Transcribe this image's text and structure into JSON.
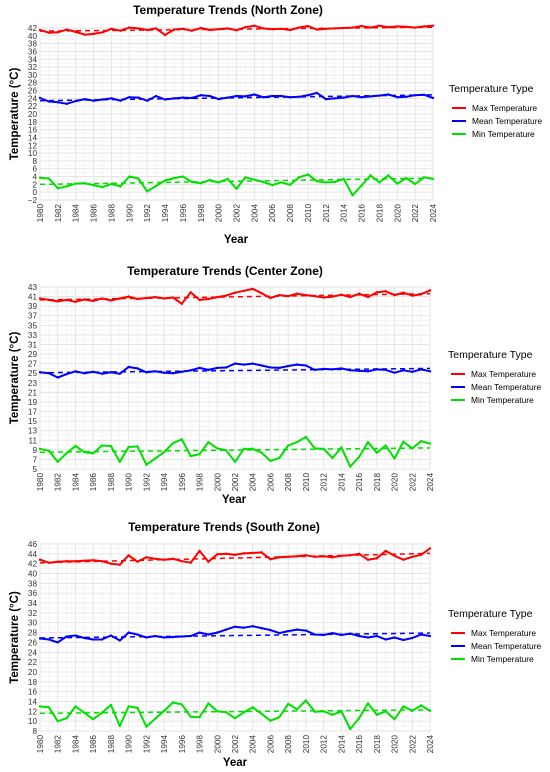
{
  "chart_data": [
    {
      "type": "line",
      "title": "Temperature Trends (North Zone)",
      "xlabel": "Year",
      "ylabel": "Temperature (°C)",
      "xlim": [
        1980,
        2024
      ],
      "ylim": [
        -2,
        42
      ],
      "yticks": [
        -2,
        0,
        2,
        4,
        6,
        8,
        10,
        12,
        14,
        16,
        18,
        20,
        22,
        24,
        26,
        28,
        30,
        32,
        34,
        36,
        38,
        40,
        42
      ],
      "xticks": [
        1980,
        1982,
        1984,
        1986,
        1988,
        1990,
        1992,
        1994,
        1996,
        1998,
        2000,
        2002,
        2004,
        2006,
        2008,
        2010,
        2012,
        2014,
        2016,
        2018,
        2020,
        2022,
        2024
      ],
      "grid": true,
      "legend": {
        "title": "Temperature Type",
        "placement": "right"
      },
      "x": [
        1980,
        1981,
        1982,
        1983,
        1984,
        1985,
        1986,
        1987,
        1988,
        1989,
        1990,
        1991,
        1992,
        1993,
        1994,
        1995,
        1996,
        1997,
        1998,
        1999,
        2000,
        2001,
        2002,
        2003,
        2004,
        2005,
        2006,
        2007,
        2008,
        2009,
        2010,
        2011,
        2012,
        2013,
        2014,
        2015,
        2016,
        2017,
        2018,
        2019,
        2020,
        2021,
        2022,
        2023,
        2024
      ],
      "series": [
        {
          "name": "Max Temperature",
          "color": "#ff0000",
          "values": [
            41.5,
            40.8,
            40.9,
            41.6,
            41.0,
            40.3,
            40.5,
            40.9,
            41.8,
            41.3,
            42.1,
            41.9,
            41.5,
            41.9,
            40.2,
            41.6,
            41.8,
            41.3,
            42.0,
            41.5,
            41.7,
            41.9,
            41.4,
            42.2,
            42.6,
            41.9,
            41.7,
            41.8,
            41.5,
            42.1,
            42.5,
            41.6,
            41.8,
            41.9,
            42.0,
            42.1,
            42.5,
            42.1,
            42.6,
            42.2,
            42.4,
            42.3,
            42.1,
            42.4,
            42.6
          ],
          "trend": [
            41.2,
            42.2
          ]
        },
        {
          "name": "Mean Temperature",
          "color": "#0000ff",
          "values": [
            24.1,
            23.2,
            23.0,
            22.6,
            23.3,
            23.8,
            23.4,
            23.7,
            24.0,
            23.4,
            24.3,
            24.2,
            23.4,
            24.6,
            23.7,
            24.0,
            24.2,
            24.1,
            24.8,
            24.6,
            23.8,
            24.2,
            24.6,
            24.5,
            25.0,
            24.3,
            24.6,
            24.6,
            24.3,
            24.4,
            24.8,
            25.4,
            23.8,
            24.0,
            24.2,
            24.6,
            24.3,
            24.5,
            24.7,
            25.0,
            24.3,
            24.4,
            24.8,
            24.9,
            24.1
          ],
          "trend": [
            23.4,
            24.9
          ]
        },
        {
          "name": "Min Temperature",
          "color": "#00e000",
          "values": [
            3.7,
            3.5,
            1.0,
            1.5,
            2.2,
            2.3,
            1.8,
            1.3,
            2.1,
            1.5,
            4.0,
            3.5,
            0.2,
            1.6,
            3.0,
            3.6,
            4.0,
            2.6,
            2.3,
            3.1,
            2.5,
            3.4,
            0.9,
            3.8,
            3.2,
            2.6,
            1.8,
            2.5,
            1.9,
            3.8,
            4.5,
            2.8,
            2.5,
            2.6,
            3.4,
            -0.8,
            1.7,
            4.3,
            2.5,
            4.3,
            2.2,
            3.6,
            2.1,
            3.8,
            3.4
          ],
          "trend": [
            2.0,
            3.6
          ]
        }
      ]
    },
    {
      "type": "line",
      "title": "Temperature Trends (Center Zone)",
      "xlabel": "Year",
      "ylabel": "Temperature (°C)",
      "xlim": [
        1980,
        2024
      ],
      "ylim": [
        5,
        43
      ],
      "yticks": [
        5,
        7,
        9,
        11,
        13,
        15,
        17,
        19,
        21,
        23,
        25,
        27,
        29,
        31,
        33,
        35,
        37,
        39,
        41,
        43
      ],
      "xticks": [
        1980,
        1982,
        1984,
        1986,
        1988,
        1990,
        1992,
        1994,
        1996,
        1998,
        2000,
        2002,
        2004,
        2006,
        2008,
        2010,
        2012,
        2014,
        2016,
        2018,
        2020,
        2022,
        2024
      ],
      "grid": true,
      "legend": {
        "title": "Temperature Type",
        "placement": "right"
      },
      "x": [
        1980,
        1981,
        1982,
        1983,
        1984,
        1985,
        1986,
        1987,
        1988,
        1989,
        1990,
        1991,
        1992,
        1993,
        1994,
        1995,
        1996,
        1997,
        1998,
        1999,
        2000,
        2001,
        2002,
        2003,
        2004,
        2005,
        2006,
        2007,
        2008,
        2009,
        2010,
        2011,
        2012,
        2013,
        2014,
        2015,
        2016,
        2017,
        2018,
        2019,
        2020,
        2021,
        2022,
        2023,
        2024
      ],
      "series": [
        {
          "name": "Max Temperature",
          "color": "#ff0000",
          "values": [
            40.6,
            40.3,
            40.0,
            40.3,
            39.9,
            40.4,
            40.1,
            40.6,
            40.2,
            40.6,
            41.0,
            40.5,
            40.7,
            40.9,
            40.6,
            40.8,
            39.5,
            41.9,
            40.3,
            40.5,
            40.9,
            41.2,
            41.8,
            42.2,
            42.6,
            41.7,
            40.7,
            41.3,
            41.1,
            41.6,
            41.3,
            41.1,
            40.8,
            41.0,
            41.4,
            40.9,
            41.6,
            40.9,
            41.9,
            42.1,
            41.3,
            41.8,
            41.2,
            41.5,
            42.3
          ],
          "trend": [
            40.3,
            41.6
          ]
        },
        {
          "name": "Mean Temperature",
          "color": "#0000ff",
          "values": [
            25.2,
            25.0,
            24.1,
            24.8,
            25.4,
            25.0,
            25.3,
            24.9,
            25.2,
            24.9,
            26.3,
            26.0,
            25.2,
            25.4,
            25.1,
            25.0,
            25.3,
            25.6,
            26.1,
            25.7,
            26.1,
            26.2,
            27.0,
            26.8,
            27.0,
            26.6,
            26.2,
            26.1,
            26.5,
            26.8,
            26.6,
            25.7,
            25.9,
            25.8,
            26.0,
            25.6,
            25.5,
            25.4,
            25.8,
            25.7,
            25.1,
            25.6,
            25.3,
            25.8,
            25.4
          ],
          "trend": [
            25.1,
            26.0
          ]
        },
        {
          "name": "Min Temperature",
          "color": "#00e000",
          "values": [
            9.2,
            8.8,
            6.5,
            8.3,
            9.8,
            8.5,
            8.3,
            9.9,
            9.8,
            6.5,
            9.6,
            9.7,
            5.9,
            7.2,
            8.5,
            10.4,
            11.2,
            7.7,
            8.1,
            10.6,
            9.3,
            8.9,
            6.5,
            9.2,
            9.2,
            8.4,
            6.7,
            7.3,
            9.9,
            10.6,
            11.7,
            9.3,
            9.2,
            7.3,
            9.5,
            5.5,
            7.5,
            10.6,
            8.4,
            9.9,
            7.2,
            10.7,
            9.3,
            10.8,
            10.3
          ],
          "trend": [
            8.5,
            9.4
          ]
        }
      ]
    },
    {
      "type": "line",
      "title": "Temperature Trends (South Zone)",
      "xlabel": "Year",
      "ylabel": "Temperature (°C)",
      "xlim": [
        1980,
        2024
      ],
      "ylim": [
        8,
        46
      ],
      "yticks": [
        8,
        10,
        12,
        14,
        16,
        18,
        20,
        22,
        24,
        26,
        28,
        30,
        32,
        34,
        36,
        38,
        40,
        42,
        44,
        46
      ],
      "xticks": [
        1980,
        1982,
        1984,
        1986,
        1988,
        1990,
        1992,
        1994,
        1996,
        1998,
        2000,
        2002,
        2004,
        2006,
        2008,
        2010,
        2012,
        2014,
        2016,
        2018,
        2020,
        2022,
        2024
      ],
      "grid": true,
      "legend": {
        "title": "Temperature Type",
        "placement": "right"
      },
      "x": [
        1980,
        1981,
        1982,
        1983,
        1984,
        1985,
        1986,
        1987,
        1988,
        1989,
        1990,
        1991,
        1992,
        1993,
        1994,
        1995,
        1996,
        1997,
        1998,
        1999,
        2000,
        2001,
        2002,
        2003,
        2004,
        2005,
        2006,
        2007,
        2008,
        2009,
        2010,
        2011,
        2012,
        2013,
        2014,
        2015,
        2016,
        2017,
        2018,
        2019,
        2020,
        2021,
        2022,
        2023,
        2024
      ],
      "series": [
        {
          "name": "Max Temperature",
          "color": "#ff0000",
          "values": [
            42.8,
            42.2,
            42.4,
            42.5,
            42.5,
            42.6,
            42.7,
            42.5,
            42.0,
            41.8,
            43.7,
            42.4,
            43.3,
            43.0,
            42.8,
            43.0,
            42.5,
            42.2,
            44.6,
            42.4,
            43.9,
            44.0,
            43.8,
            44.1,
            44.2,
            44.3,
            42.9,
            43.3,
            43.4,
            43.5,
            43.7,
            43.4,
            43.5,
            43.3,
            43.6,
            43.7,
            44.0,
            42.8,
            43.1,
            44.6,
            43.6,
            42.8,
            43.4,
            43.8,
            45.1
          ],
          "trend": [
            42.2,
            44.1
          ]
        },
        {
          "name": "Mean Temperature",
          "color": "#0000ff",
          "values": [
            26.8,
            26.6,
            26.0,
            27.2,
            27.4,
            26.9,
            26.6,
            26.6,
            27.4,
            26.4,
            28.0,
            27.6,
            27.0,
            27.3,
            27.0,
            27.1,
            27.2,
            27.3,
            28.0,
            27.6,
            28.0,
            28.6,
            29.2,
            29.0,
            29.3,
            28.9,
            28.5,
            27.9,
            28.3,
            28.6,
            28.4,
            27.6,
            27.5,
            27.9,
            27.5,
            27.8,
            27.3,
            27.0,
            27.3,
            26.6,
            27.0,
            26.5,
            26.9,
            27.6,
            27.3
          ],
          "trend": [
            26.9,
            27.9
          ]
        },
        {
          "name": "Min Temperature",
          "color": "#00e000",
          "values": [
            13.0,
            12.8,
            10.0,
            10.6,
            13.0,
            11.7,
            10.4,
            11.7,
            13.3,
            9.0,
            13.0,
            12.7,
            8.9,
            10.5,
            12.1,
            13.8,
            13.4,
            10.9,
            10.8,
            13.6,
            12.0,
            11.8,
            10.6,
            11.8,
            12.8,
            11.5,
            10.1,
            10.8,
            13.5,
            12.4,
            14.2,
            11.9,
            12.0,
            11.3,
            12.0,
            8.4,
            10.6,
            13.6,
            11.3,
            12.0,
            10.4,
            13.0,
            12.1,
            13.2,
            12.1
          ],
          "trend": [
            11.6,
            12.3
          ]
        }
      ]
    }
  ]
}
